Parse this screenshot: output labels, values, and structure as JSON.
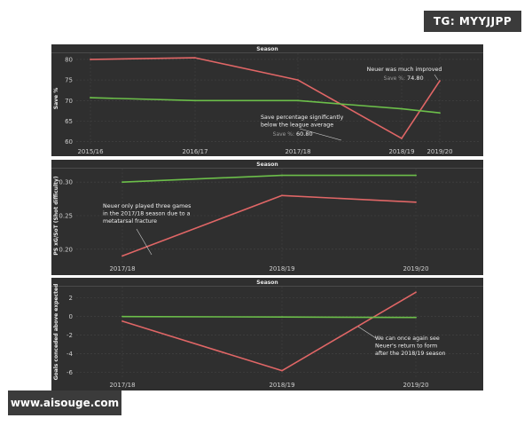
{
  "watermarks": {
    "top": "TG: MYYJJPP",
    "bottom": "www.aisouge.com"
  },
  "colors": {
    "bg": "#2f2f2f",
    "grid": "#454545",
    "red": "#e06666",
    "green": "#6cbf4a",
    "text": "#d9d9d9"
  },
  "chart_data": [
    {
      "type": "line",
      "title": "",
      "xlabel": "Season",
      "ylabel": "Save %",
      "categories": [
        "2015/16",
        "2016/17",
        "2017/18",
        "2018/19",
        "2019/20"
      ],
      "yticks": [
        60,
        65,
        70,
        75,
        80
      ],
      "ylim": [
        59.5,
        81.5
      ],
      "series": [
        {
          "color": "red",
          "values": [
            80.0,
            80.4,
            75.0,
            60.8,
            74.8
          ]
        },
        {
          "color": "green",
          "values": [
            70.7,
            70.0,
            70.0,
            68.0,
            67.0
          ]
        }
      ],
      "annotations": [
        {
          "lines": [
            "Neuer was much improved"
          ],
          "sub_label": "Save %:",
          "sub_value": "74.80"
        },
        {
          "lines": [
            "Save percentage significantly",
            "below the league average"
          ],
          "sub_label": "Save %:",
          "sub_value": "60.80"
        }
      ]
    },
    {
      "type": "line",
      "title": "",
      "xlabel": "Season",
      "ylabel": "PS xG/SoT (Shot difficulty)",
      "categories": [
        "2017/18",
        "2018/19",
        "2019/20"
      ],
      "yticks": [
        0.2,
        0.25,
        0.3
      ],
      "ylim": [
        0.18,
        0.32
      ],
      "series": [
        {
          "color": "red",
          "values": [
            0.19,
            0.28,
            0.27
          ]
        },
        {
          "color": "green",
          "values": [
            0.3,
            0.31,
            0.31
          ]
        }
      ],
      "annotations": [
        {
          "lines": [
            "Neuer only played three games",
            "in the 2017/18 season due to a",
            "metatarsal fracture"
          ]
        }
      ]
    },
    {
      "type": "line",
      "title": "",
      "xlabel": "Season",
      "ylabel": "Goals conceded above expected",
      "categories": [
        "2017/18",
        "2018/19",
        "2019/20"
      ],
      "yticks": [
        -6,
        -4,
        -2,
        0,
        2
      ],
      "ylim": [
        -6.5,
        3.2
      ],
      "series": [
        {
          "color": "red",
          "values": [
            -0.5,
            -5.8,
            2.6
          ]
        },
        {
          "color": "green",
          "values": [
            0.0,
            -0.05,
            -0.1
          ]
        }
      ],
      "annotations": [
        {
          "lines": [
            "We can once again see",
            "Neuer's return to form",
            "after the 2018/19 season"
          ]
        }
      ]
    }
  ]
}
